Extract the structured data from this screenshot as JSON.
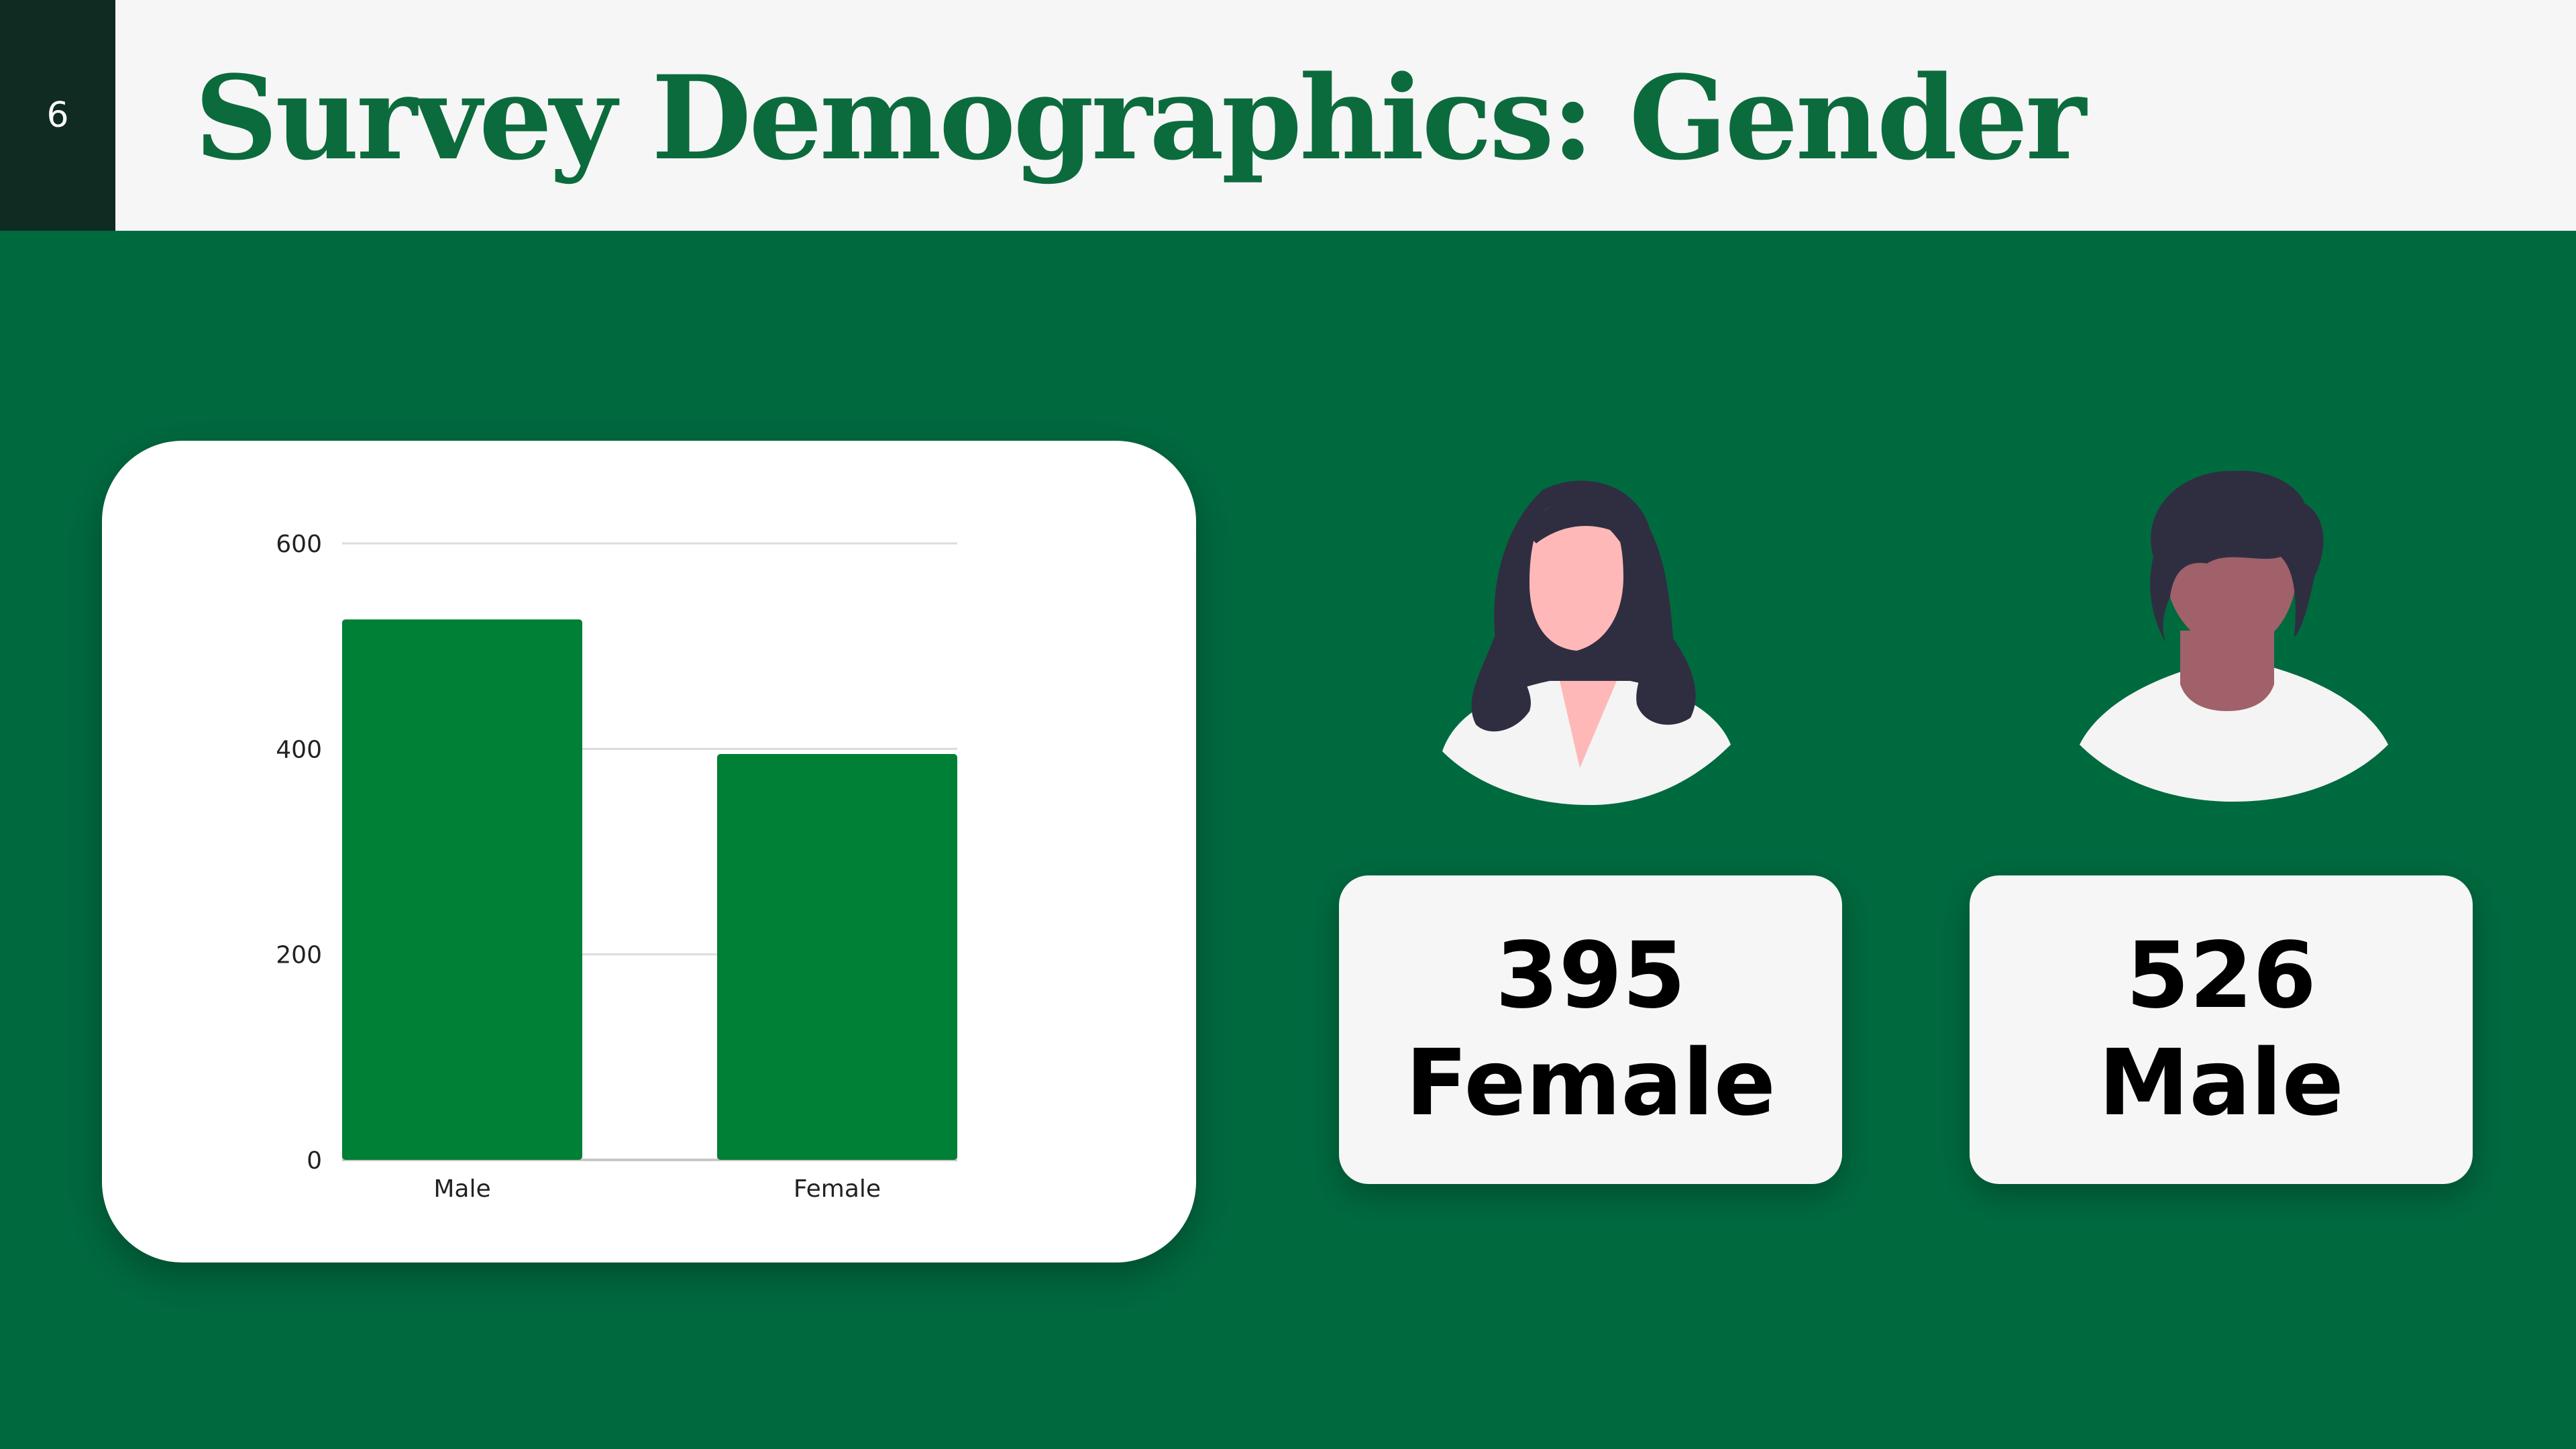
{
  "slide": {
    "page_number": "6",
    "title": "Survey Demographics: Gender"
  },
  "colors": {
    "background": "#006a3f",
    "title": "#0c6b3d",
    "bar": "#007f36",
    "page_box": "#102c22"
  },
  "chart_data": {
    "type": "bar",
    "categories": [
      "Male",
      "Female"
    ],
    "values": [
      526,
      395
    ],
    "title": "",
    "xlabel": "",
    "ylabel": "",
    "ylim": [
      0,
      600
    ],
    "yticks": [
      0,
      200,
      400,
      600
    ],
    "grid": true,
    "legend": "none"
  },
  "stats": [
    {
      "value": "395",
      "label": "Female",
      "icon": "female-avatar-icon"
    },
    {
      "value": "526",
      "label": "Male",
      "icon": "male-avatar-icon"
    }
  ]
}
